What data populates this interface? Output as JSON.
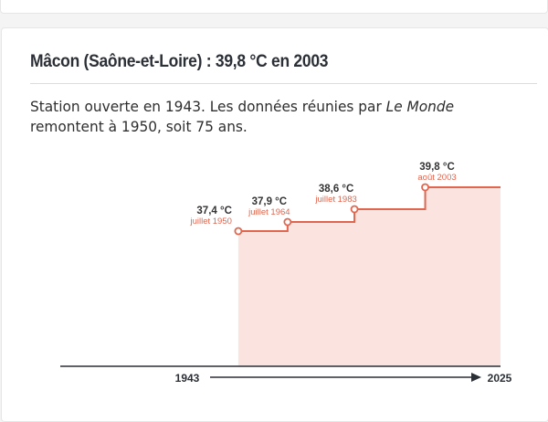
{
  "description": {
    "part1": "Station ouverte en 1943. Les données réunies par ",
    "source": "Le Monde",
    "part2": " remontent à 1950, soit 75 ans."
  },
  "colors": {
    "line": "#e1664f",
    "fill": "#fbe3df",
    "axis": "#2b2f36",
    "label": "#333333",
    "sublabel": "#e1664f"
  },
  "chart_data": {
    "type": "line",
    "title": "Mâcon (Saône-et-Loire) : 39,8 °C en 2003",
    "step": true,
    "x_unit": "year",
    "xlim": [
      1943,
      2025
    ],
    "ylim": [
      30,
      40.8
    ],
    "x_tick_labels": [
      "1943",
      "2025"
    ],
    "series": [
      {
        "points": [
          {
            "x": 1950.5,
            "y": 37.4,
            "value_label": "37,4 °C",
            "date_label": "juillet 1950"
          },
          {
            "x": 1964.5,
            "y": 37.9,
            "value_label": "37,9 °C",
            "date_label": "juillet 1964"
          },
          {
            "x": 1983.5,
            "y": 38.6,
            "value_label": "38,6 °C",
            "date_label": "juillet 1983"
          },
          {
            "x": 2003.6,
            "y": 39.8,
            "value_label": "39,8 °C",
            "date_label": "août 2003"
          }
        ]
      }
    ]
  }
}
